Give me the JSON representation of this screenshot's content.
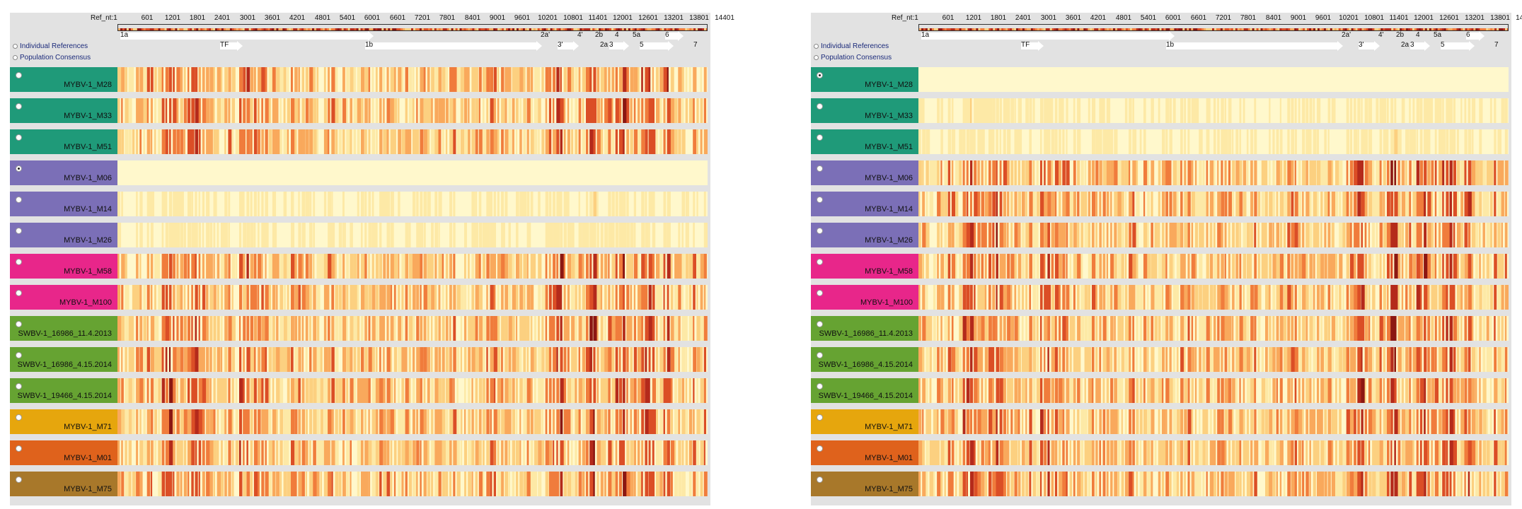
{
  "palette": [
    "#fff8cc",
    "#fde9a6",
    "#fcd080",
    "#f9a95c",
    "#f07c3c",
    "#db4e26",
    "#b42a1b",
    "#8c1712"
  ],
  "ruler": {
    "label": "Ref_nt:1",
    "ticks": [
      "601",
      "1201",
      "1801",
      "2401",
      "3001",
      "3601",
      "4201",
      "4801",
      "5401",
      "6001",
      "6601",
      "7201",
      "7801",
      "8401",
      "9001",
      "9601",
      "10201",
      "10801",
      "11401",
      "12001",
      "12601",
      "13201",
      "13801",
      "14401"
    ]
  },
  "genes": [
    "1a",
    "TF",
    "1b",
    "2a'",
    "3'",
    "4'",
    "2b",
    "2a",
    "3",
    "4",
    "5a",
    "5",
    "6",
    "7"
  ],
  "toggles": {
    "individual": "Individual References",
    "population": "Population Consensus"
  },
  "panels": [
    {
      "id": "left",
      "reference_row": 3
    },
    {
      "id": "right",
      "reference_row": 0
    }
  ],
  "samples": [
    {
      "name": "MYBV-1_M28",
      "color": "#1f9a79",
      "group": 0
    },
    {
      "name": "MYBV-1_M33",
      "color": "#1f9a79",
      "group": 0
    },
    {
      "name": "MYBV-1_M51",
      "color": "#1f9a79",
      "group": 0
    },
    {
      "name": "MYBV-1_M06",
      "color": "#7b6fb7",
      "group": 1
    },
    {
      "name": "MYBV-1_M14",
      "color": "#7b6fb7",
      "group": 1
    },
    {
      "name": "MYBV-1_M26",
      "color": "#7b6fb7",
      "group": 1
    },
    {
      "name": "MYBV-1_M58",
      "color": "#e8268a",
      "group": 2
    },
    {
      "name": "MYBV-1_M100",
      "color": "#e8268a",
      "group": 2
    },
    {
      "name": "SWBV-1_16986_11.4.2013",
      "color": "#66a332",
      "group": 3
    },
    {
      "name": "SWBV-1_16986_4.15.2014",
      "color": "#66a332",
      "group": 3
    },
    {
      "name": "SWBV-1_19466_4.15.2014",
      "color": "#66a332",
      "group": 3
    },
    {
      "name": "MYBV-1_M71",
      "color": "#e6a60d",
      "group": 4
    },
    {
      "name": "MYBV-1_M01",
      "color": "#df621c",
      "group": 5
    },
    {
      "name": "MYBV-1_M75",
      "color": "#a8782a",
      "group": 6
    }
  ]
}
